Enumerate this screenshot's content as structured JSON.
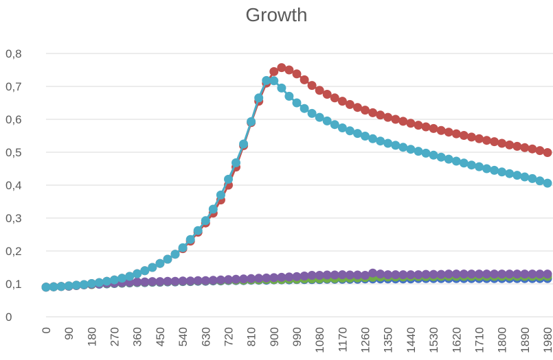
{
  "chart_data": {
    "type": "line",
    "title": "Growth",
    "xlabel": "",
    "ylabel": "",
    "x_start": 0,
    "x_step": 30,
    "x_end": 1980,
    "x_tick_labels": [
      "0",
      "90",
      "180",
      "270",
      "360",
      "450",
      "540",
      "630",
      "720",
      "810",
      "900",
      "990",
      "1080",
      "1170",
      "1260",
      "1350",
      "1440",
      "1530",
      "1620",
      "1710",
      "1800",
      "1890",
      "1980"
    ],
    "ylim": [
      0,
      0.8
    ],
    "y_ticks": [
      0,
      0.1,
      0.2,
      0.3,
      0.4,
      0.5,
      0.6,
      0.7,
      0.8
    ],
    "y_tick_labels": [
      "0",
      "0,1",
      "0,2",
      "0,3",
      "0,4",
      "0,5",
      "0,6",
      "0,7",
      "0,8"
    ],
    "grid": true,
    "legend": "none",
    "series": [
      {
        "color": "#4472C4",
        "values": [
          0.09,
          0.091,
          0.092,
          0.093,
          0.095,
          0.097,
          0.098,
          0.099,
          0.1,
          0.101,
          0.102,
          0.103,
          0.104,
          0.104,
          0.105,
          0.105,
          0.106,
          0.106,
          0.107,
          0.107,
          0.108,
          0.108,
          0.109,
          0.109,
          0.11,
          0.11,
          0.11,
          0.111,
          0.111,
          0.111,
          0.112,
          0.112,
          0.112,
          0.113,
          0.113,
          0.113,
          0.113,
          0.114,
          0.114,
          0.114,
          0.114,
          0.114,
          0.115,
          0.115,
          0.115,
          0.115,
          0.115,
          0.115,
          0.115,
          0.116,
          0.116,
          0.116,
          0.116,
          0.116,
          0.116,
          0.116,
          0.116,
          0.116,
          0.116,
          0.116,
          0.116,
          0.116,
          0.116,
          0.116,
          0.116,
          0.116,
          0.116
        ]
      },
      {
        "color": "#70AD47",
        "values": [
          0.09,
          0.091,
          0.092,
          0.093,
          0.095,
          0.097,
          0.098,
          0.1,
          0.101,
          0.102,
          0.103,
          0.104,
          0.105,
          0.105,
          0.106,
          0.106,
          0.107,
          0.107,
          0.108,
          0.108,
          0.109,
          0.109,
          0.11,
          0.11,
          0.111,
          0.111,
          0.111,
          0.112,
          0.112,
          0.113,
          0.113,
          0.113,
          0.114,
          0.114,
          0.115,
          0.115,
          0.115,
          0.116,
          0.116,
          0.117,
          0.117,
          0.118,
          0.119,
          0.12,
          0.121,
          0.121,
          0.121,
          0.121,
          0.122,
          0.122,
          0.122,
          0.122,
          0.123,
          0.123,
          0.123,
          0.123,
          0.123,
          0.123,
          0.123,
          0.123,
          0.123,
          0.123,
          0.123,
          0.123,
          0.123,
          0.123,
          0.123
        ]
      },
      {
        "color": "#7F5FA6",
        "values": [
          0.09,
          0.091,
          0.092,
          0.093,
          0.095,
          0.097,
          0.099,
          0.1,
          0.102,
          0.103,
          0.104,
          0.105,
          0.106,
          0.106,
          0.107,
          0.107,
          0.108,
          0.108,
          0.109,
          0.109,
          0.11,
          0.11,
          0.111,
          0.112,
          0.113,
          0.114,
          0.115,
          0.116,
          0.117,
          0.118,
          0.119,
          0.12,
          0.121,
          0.122,
          0.124,
          0.126,
          0.126,
          0.127,
          0.127,
          0.128,
          0.127,
          0.127,
          0.126,
          0.133,
          0.13,
          0.128,
          0.128,
          0.128,
          0.128,
          0.128,
          0.129,
          0.129,
          0.129,
          0.13,
          0.13,
          0.13,
          0.13,
          0.13,
          0.13,
          0.13,
          0.13,
          0.13,
          0.13,
          0.13,
          0.13,
          0.13,
          0.13
        ]
      },
      {
        "color": "#C0504D",
        "values": [
          0.09,
          0.091,
          0.092,
          0.094,
          0.096,
          0.098,
          0.101,
          0.104,
          0.108,
          0.112,
          0.117,
          0.123,
          0.131,
          0.14,
          0.15,
          0.162,
          0.175,
          0.19,
          0.207,
          0.23,
          0.257,
          0.285,
          0.315,
          0.355,
          0.4,
          0.455,
          0.52,
          0.59,
          0.655,
          0.71,
          0.745,
          0.757,
          0.75,
          0.738,
          0.72,
          0.703,
          0.688,
          0.676,
          0.665,
          0.655,
          0.645,
          0.636,
          0.628,
          0.62,
          0.613,
          0.606,
          0.6,
          0.594,
          0.588,
          0.582,
          0.577,
          0.572,
          0.566,
          0.561,
          0.556,
          0.551,
          0.546,
          0.541,
          0.536,
          0.532,
          0.527,
          0.522,
          0.518,
          0.514,
          0.51,
          0.505,
          0.499
        ]
      },
      {
        "color": "#4BACC6",
        "values": [
          0.09,
          0.091,
          0.092,
          0.094,
          0.096,
          0.098,
          0.101,
          0.104,
          0.108,
          0.112,
          0.117,
          0.123,
          0.131,
          0.14,
          0.15,
          0.162,
          0.175,
          0.19,
          0.21,
          0.235,
          0.262,
          0.292,
          0.327,
          0.37,
          0.418,
          0.468,
          0.525,
          0.593,
          0.665,
          0.718,
          0.717,
          0.695,
          0.67,
          0.65,
          0.633,
          0.618,
          0.606,
          0.595,
          0.584,
          0.574,
          0.565,
          0.557,
          0.549,
          0.541,
          0.534,
          0.527,
          0.521,
          0.515,
          0.509,
          0.503,
          0.497,
          0.491,
          0.485,
          0.479,
          0.473,
          0.467,
          0.461,
          0.456,
          0.45,
          0.445,
          0.44,
          0.435,
          0.43,
          0.425,
          0.42,
          0.413,
          0.406
        ]
      }
    ]
  }
}
